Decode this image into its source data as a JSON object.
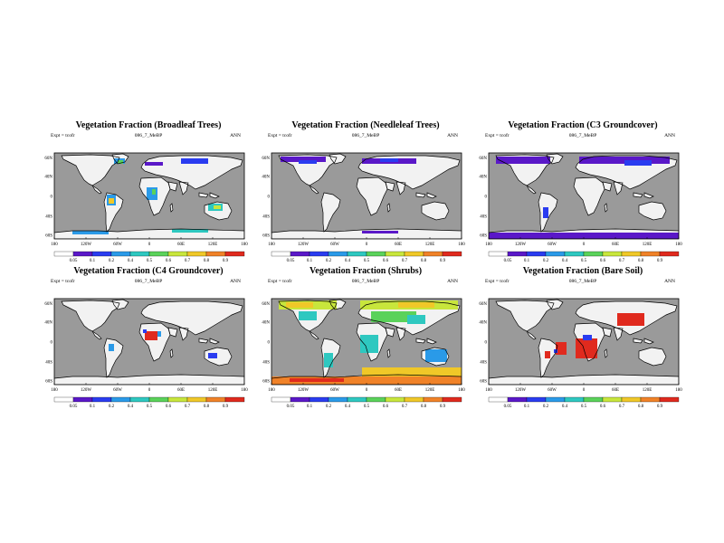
{
  "figure": {
    "expt_label": "Expt = tcofr",
    "case_label": "086_7_MeBP",
    "season_label": "ANN",
    "lon_ticks": [
      "180",
      "120W",
      "60W",
      "0",
      "60E",
      "120E",
      "180"
    ],
    "lat_ticks": [
      "60N",
      "40N",
      "0",
      "40S",
      "60S"
    ],
    "colorbar_labels": [
      "0.05",
      "0.1",
      "0.2",
      "0.4",
      "0.5",
      "0.6",
      "0.7",
      "0.8",
      "0.9"
    ],
    "colorbar_colors": [
      "#ffffff",
      "#5a18c8",
      "#2a3cf0",
      "#2a9ae8",
      "#2ec8c0",
      "#5ad25a",
      "#c8e63c",
      "#f0c828",
      "#f08228",
      "#e02a1e"
    ],
    "ocean_color": "#9a9a9a",
    "land_color": "#f2f2f2",
    "coast_color": "#000000"
  },
  "panels": [
    {
      "title": "Vegetation Fraction (Broadleaf Trees)",
      "case_label": "086_7_MeBP"
    },
    {
      "title": "Vegetation Fraction (Needleleaf Trees)",
      "case_label": "086_7_MeBP"
    },
    {
      "title": "Vegetation Fraction (C3 Groundcover)",
      "case_label": "086_7_MeBP"
    },
    {
      "title": "Vegetation Fraction (C4 Groundcover)",
      "case_label": "086_7_MeBP"
    },
    {
      "title": "Vegetation Fraction (Shrubs)",
      "case_label": "086_7_MeBP"
    },
    {
      "title": "Vegetation Fraction (Bare Soil)",
      "case_label": "086_7_MeBP"
    }
  ]
}
